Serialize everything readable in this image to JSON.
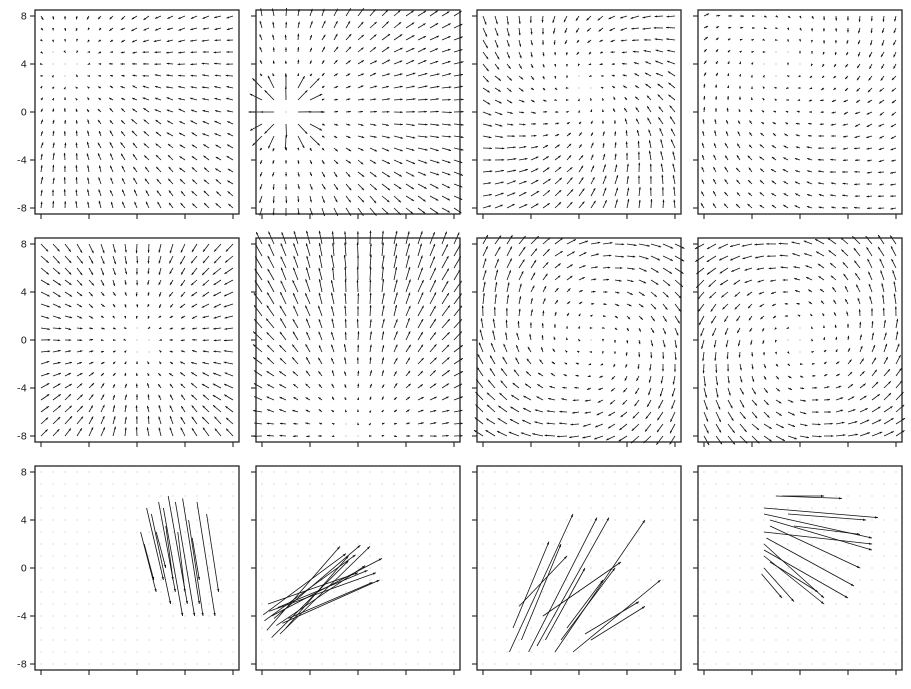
{
  "figure": {
    "rows": 3,
    "cols": 4
  },
  "chart_data": {
    "type": "quiver",
    "xlim": [
      -8.5,
      8.5
    ],
    "ylim": [
      -8.5,
      8.5
    ],
    "grid": false,
    "yticks": [
      8,
      4,
      0,
      -4,
      -8
    ],
    "ytick_labels": [
      "8",
      "4",
      "0",
      "-4",
      "-8"
    ],
    "xticks": [
      -8,
      -4,
      0,
      4,
      8
    ],
    "xtick_labels": [],
    "arrow_color": "#111111",
    "frame_color": "#222222",
    "panels": [
      {
        "name": "r1c1",
        "row": 0,
        "col": 0,
        "field": "radial_inward_left",
        "center": [
          -6,
          4
        ],
        "strength": 0.8,
        "noise_seed": 11
      },
      {
        "name": "r1c2",
        "row": 0,
        "col": 1,
        "field": "source_cluster",
        "center": [
          -6,
          0
        ],
        "strength": 1.1,
        "noise_seed": 12
      },
      {
        "name": "r1c3",
        "row": 0,
        "col": 2,
        "field": "rotational_sink",
        "center": [
          0,
          2
        ],
        "strength": 1.0,
        "noise_seed": 13
      },
      {
        "name": "r1c4",
        "row": 0,
        "col": 3,
        "field": "swirl_corner",
        "center": [
          -2,
          4
        ],
        "strength": 0.9,
        "noise_seed": 14
      },
      {
        "name": "r2c1",
        "row": 1,
        "col": 0,
        "field": "sink",
        "center": [
          0,
          0
        ],
        "strength": 0.9,
        "noise_seed": 21
      },
      {
        "name": "r2c2",
        "row": 1,
        "col": 1,
        "field": "fan_up",
        "center": [
          0,
          -8
        ],
        "strength": 1.1,
        "noise_seed": 22
      },
      {
        "name": "r2c3",
        "row": 1,
        "col": 2,
        "field": "vortex_cw",
        "center": [
          1,
          0
        ],
        "strength": 1.0,
        "noise_seed": 23
      },
      {
        "name": "r2c4",
        "row": 1,
        "col": 3,
        "field": "vortex_ccw",
        "center": [
          0,
          0
        ],
        "strength": 1.0,
        "noise_seed": 24
      },
      {
        "name": "r3c1",
        "row": 2,
        "col": 0,
        "field": "segments",
        "segments": [
          [
            0.3,
            3,
            1.6,
            -2
          ],
          [
            0.8,
            5,
            2.2,
            -1
          ],
          [
            1.2,
            4.5,
            2.8,
            -3
          ],
          [
            1.8,
            5.5,
            3.2,
            -2
          ],
          [
            2.2,
            5,
            3.8,
            -4
          ],
          [
            2.6,
            6,
            4.2,
            -3
          ],
          [
            3.2,
            5.5,
            4.8,
            -4
          ],
          [
            3.8,
            5.8,
            5.2,
            -3
          ],
          [
            4.3,
            4,
            5.5,
            -4
          ],
          [
            5,
            5.5,
            6.5,
            -4
          ],
          [
            5.8,
            4.5,
            6.8,
            -2
          ],
          [
            0.6,
            2,
            1.4,
            -1
          ],
          [
            1.6,
            3,
            2.4,
            0
          ],
          [
            2.4,
            3.5,
            3,
            -1
          ],
          [
            3.4,
            3,
            4,
            -2
          ],
          [
            4.6,
            2.5,
            5.2,
            -1
          ]
        ]
      },
      {
        "name": "r3c2",
        "row": 2,
        "col": 1,
        "field": "segments",
        "segments": [
          [
            -7.6,
            -5.2,
            -1.5,
            1.8
          ],
          [
            -7.2,
            -5.8,
            -0.8,
            0.6
          ],
          [
            -7.8,
            -4.4,
            -0.2,
            1.1
          ],
          [
            -6.8,
            -4.8,
            0.6,
            0.2
          ],
          [
            -7.4,
            -3.6,
            1.5,
            -0.4
          ],
          [
            -6.5,
            -5.5,
            1.0,
            1.8
          ],
          [
            -7.0,
            -4.2,
            0.2,
            1.9
          ],
          [
            -6.3,
            -4.6,
            1.8,
            -1.0
          ],
          [
            -7.9,
            -3.9,
            -1.0,
            1.2
          ],
          [
            -6.7,
            -3.3,
            0.8,
            -0.2
          ],
          [
            -7.2,
            -4.0,
            2.0,
            0.8
          ],
          [
            -6.0,
            -5.0,
            -0.8,
            1.0
          ],
          [
            -5.8,
            -4.2,
            1.2,
            -1.2
          ],
          [
            -7.5,
            -3.0,
            0.0,
            -0.4
          ]
        ]
      },
      {
        "name": "r3c3",
        "row": 2,
        "col": 2,
        "field": "segments",
        "segments": [
          [
            -5.5,
            -5,
            -2.5,
            2.2
          ],
          [
            -5.8,
            -7,
            -0.5,
            4.5
          ],
          [
            -4.8,
            -6,
            -1.5,
            2
          ],
          [
            -4.2,
            -7,
            1.5,
            4.2
          ],
          [
            -3.5,
            -6.5,
            2.5,
            4.2
          ],
          [
            -2.8,
            -6,
            0.5,
            0
          ],
          [
            -2,
            -7,
            5.5,
            4
          ],
          [
            -1.5,
            -6,
            3,
            0
          ],
          [
            -1,
            -5,
            2,
            -1
          ],
          [
            -0.5,
            -7,
            6.8,
            -1
          ],
          [
            0.5,
            -5.5,
            5,
            -2.8
          ],
          [
            1,
            -6,
            5.5,
            -3.2
          ],
          [
            -3,
            -4,
            3.5,
            0.5
          ],
          [
            -5,
            -3.2,
            -1,
            1
          ]
        ]
      },
      {
        "name": "r3c4",
        "row": 2,
        "col": 3,
        "field": "segments",
        "segments": [
          [
            -2,
            6,
            3.5,
            5.8
          ],
          [
            -1.5,
            6,
            2,
            6
          ],
          [
            -3,
            5,
            6.5,
            4.2
          ],
          [
            -3,
            4.5,
            6,
            2.5
          ],
          [
            -2.5,
            4,
            6,
            1.5
          ],
          [
            -2.5,
            3.5,
            5,
            0
          ],
          [
            -3,
            3,
            6,
            2
          ],
          [
            -2.8,
            2.5,
            4.5,
            -1.5
          ],
          [
            -3,
            2,
            2,
            -2.5
          ],
          [
            -3,
            1.5,
            4,
            -2.5
          ],
          [
            -3,
            1,
            2,
            -3
          ],
          [
            -2.5,
            0.5,
            1.5,
            -2
          ],
          [
            -3,
            0,
            -0.5,
            -2.8
          ],
          [
            -3.2,
            -0.5,
            -1.5,
            -2.5
          ],
          [
            -1,
            4.5,
            5.5,
            4
          ],
          [
            -0.5,
            3.5,
            5,
            2.8
          ]
        ]
      }
    ]
  }
}
